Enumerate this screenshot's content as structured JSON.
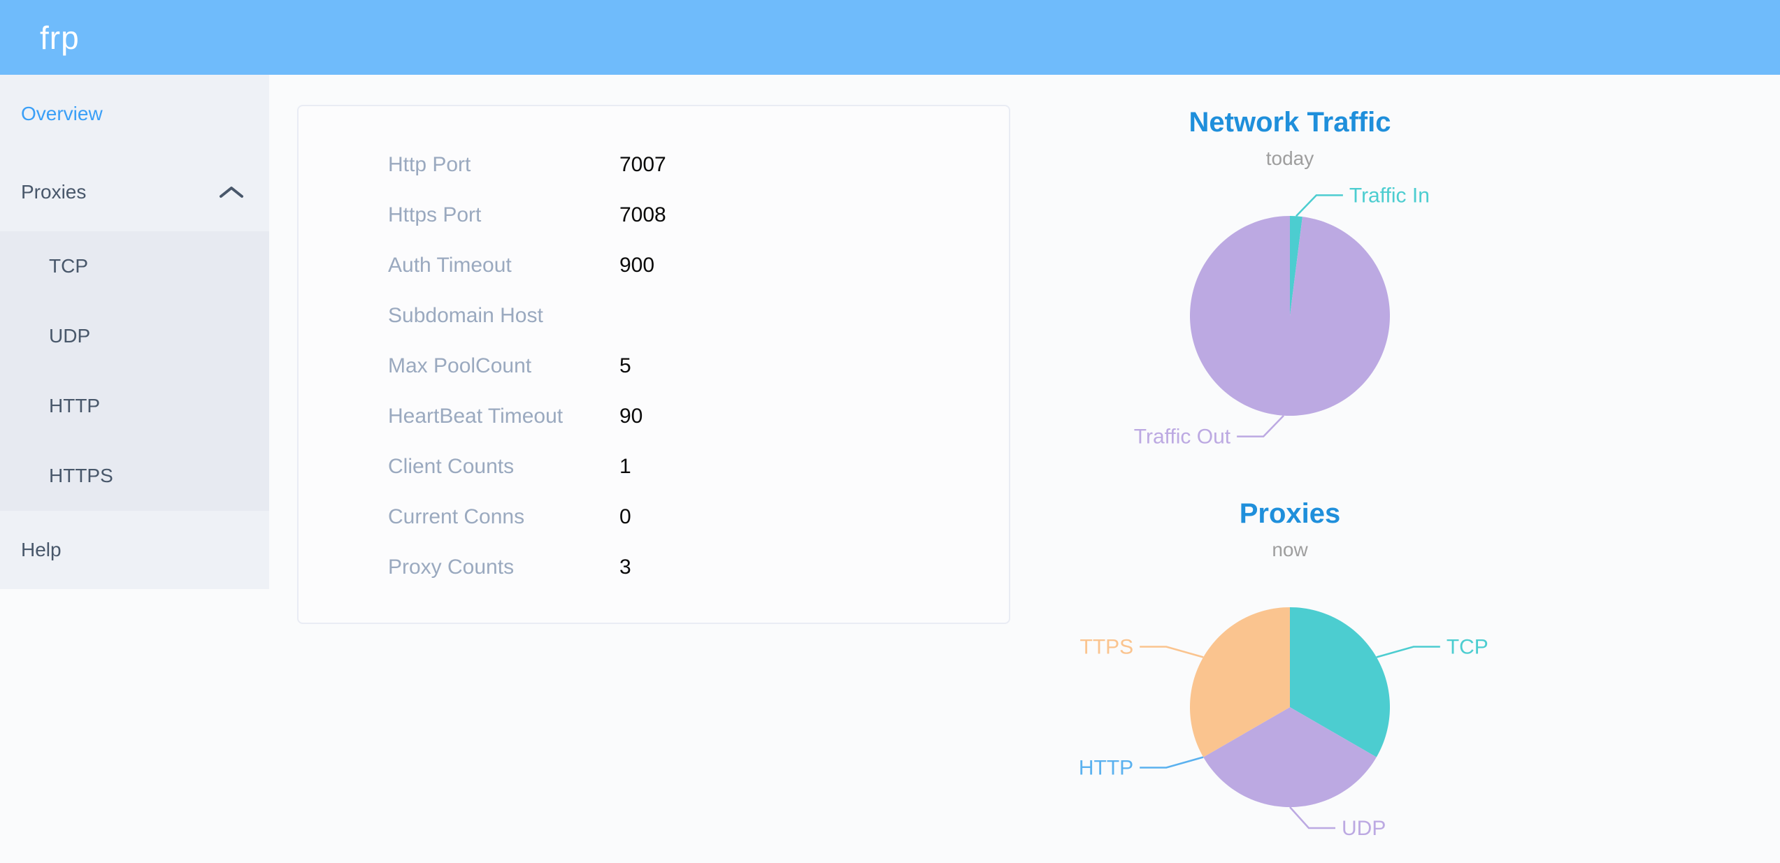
{
  "header": {
    "logo": "frp"
  },
  "sidebar": {
    "overview": {
      "label": "Overview",
      "active": true
    },
    "proxies": {
      "label": "Proxies",
      "expanded": true
    },
    "proxies_children": [
      {
        "label": "TCP"
      },
      {
        "label": "UDP"
      },
      {
        "label": "HTTP"
      },
      {
        "label": "HTTPS"
      }
    ],
    "help": {
      "label": "Help"
    }
  },
  "server_info": {
    "rows": [
      {
        "label": "Http Port",
        "value": "7007"
      },
      {
        "label": "Https Port",
        "value": "7008"
      },
      {
        "label": "Auth Timeout",
        "value": "900"
      },
      {
        "label": "Subdomain Host",
        "value": ""
      },
      {
        "label": "Max PoolCount",
        "value": "5"
      },
      {
        "label": "HeartBeat Timeout",
        "value": "90"
      },
      {
        "label": "Client Counts",
        "value": "1"
      },
      {
        "label": "Current Conns",
        "value": "0"
      },
      {
        "label": "Proxy Counts",
        "value": "3"
      }
    ]
  },
  "chart_data": [
    {
      "type": "pie",
      "title": "Network Traffic",
      "subtitle": "today",
      "legend_position": "outside-labels",
      "series": [
        {
          "name": "Traffic In",
          "value": 2,
          "color": "#4ccdd0"
        },
        {
          "name": "Traffic Out",
          "value": 98,
          "color": "#bca9e2"
        }
      ]
    },
    {
      "type": "pie",
      "title": "Proxies",
      "subtitle": "now",
      "legend_position": "outside-labels",
      "series": [
        {
          "name": "TCP",
          "value": 1,
          "color": "#4ccdd0"
        },
        {
          "name": "UDP",
          "value": 1,
          "color": "#bca9e2"
        },
        {
          "name": "HTTP",
          "value": 0,
          "color": "#5ab1ef"
        },
        {
          "name": "HTTPS",
          "value": 1,
          "color": "#fac48f"
        }
      ]
    }
  ],
  "theme": {
    "header_bg": "#6fbbfb",
    "sidebar_bg": "#eef1f6",
    "submenu_bg": "#e7eaf1",
    "sidebar_text": "#48576a",
    "sidebar_active": "#3a9ff7",
    "chart_title": "#1f8fdb",
    "chart_subtitle": "#9e9e9e",
    "info_label": "#9aa9bf",
    "info_value": "#0a0a0a"
  }
}
